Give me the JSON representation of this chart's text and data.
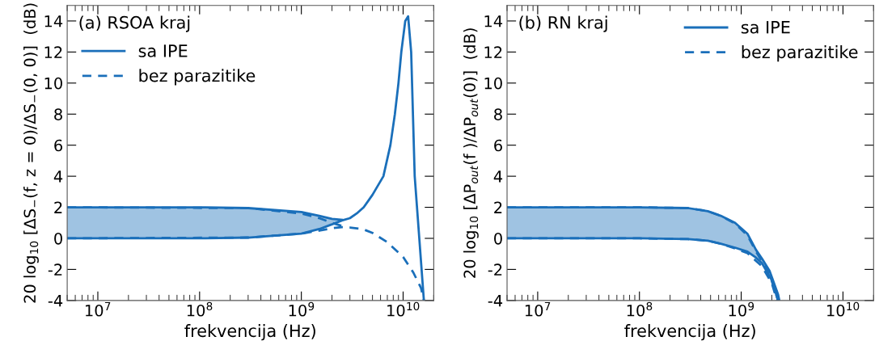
{
  "chart_data": [
    {
      "type": "line",
      "title": "(a) RSOA kraj",
      "xlabel": "frekvencija (Hz)",
      "ylabel": "20 log$_{10}$ [ΔS$_{−}$(f, z = 0)/ΔS$_{−}$(0, 0)]  (dB)",
      "log": "x",
      "xlim": [
        5000000.0,
        20000000000.0
      ],
      "ylim": [
        -4,
        15
      ],
      "xticks": [
        {
          "value": 10000000.0,
          "label": "10$^{7}$"
        },
        {
          "value": 100000000.0,
          "label": "10$^{8}$"
        },
        {
          "value": 1000000000.0,
          "label": "10$^{9}$"
        },
        {
          "value": 10000000000.0,
          "label": "10$^{10}$"
        }
      ],
      "yticks": [
        -4,
        -2,
        0,
        2,
        4,
        6,
        8,
        10,
        12,
        14
      ],
      "legend": "top left",
      "grid": false,
      "series": [
        {
          "name": "sa IPE",
          "color": "#1a6fba",
          "line_style": "solid",
          "x": [
            5000000.0,
            100000000.0,
            300000000.0,
            1000000000.0,
            1500000000.0,
            2000000000.0,
            2500000000.0
          ],
          "values": [
            2,
            2,
            1.95,
            1.7,
            1.45,
            1.25,
            1.2
          ],
          "lower": [
            0,
            0,
            0.05,
            0.3,
            0.6,
            0.9,
            1.15
          ],
          "upper": [
            2,
            2,
            1.95,
            1.7,
            1.45,
            1.25,
            1.2
          ]
        },
        {
          "color": "#1a6fba",
          "line_style": "solid",
          "x": [
            5000000.0,
            100000000.0,
            300000000.0,
            1000000000.0,
            1500000000.0,
            2000000000.0,
            2500000000.0,
            3000000000.0,
            3500000000.0,
            4100000000.0,
            5000000000.0,
            6400000000.0,
            7500000000.0,
            8300000000.0,
            9000000000.0,
            9600000000.0,
            10500000000.0,
            11200000000.0,
            12000000000.0,
            13000000000.0,
            16000000000.0
          ],
          "values": [
            0,
            0,
            0.05,
            0.3,
            0.6,
            0.9,
            1.15,
            1.3,
            1.6,
            2,
            2.8,
            4,
            6,
            8,
            10,
            12,
            14,
            14.3,
            12,
            4,
            -4
          ]
        },
        {
          "name": "bez parazitike",
          "color": "#1a6fba",
          "line_style": "dashed",
          "x": [
            5000000.0,
            300000000.0,
            1000000000.0,
            1500000000.0,
            2000000000.0,
            2500000000.0
          ],
          "values": [
            2,
            1.95,
            1.6,
            1.3,
            1.0,
            0.8
          ]
        },
        {
          "color": "#1a6fba",
          "line_style": "dashed",
          "x": [
            5000000.0,
            300000000.0,
            1000000000.0,
            1500000000.0,
            2000000000.0,
            2500000000.0,
            3000000000.0,
            4000000000.0,
            5000000000.0,
            7000000000.0,
            10000000000.0,
            12600000000.0,
            15000000000.0,
            16000000000.0
          ],
          "values": [
            0,
            0.05,
            0.3,
            0.5,
            0.65,
            0.72,
            0.7,
            0.6,
            0.35,
            -0.25,
            -1.2,
            -2.2,
            -3.2,
            -4
          ]
        }
      ]
    },
    {
      "type": "line",
      "title": "(b) RN kraj",
      "xlabel": "frekvencija (Hz)",
      "ylabel": "20 log$_{10}$ [ΔP$_{out}$(f )/ΔP$_{out}$(0)]  (dB)",
      "log": "x",
      "xlim": [
        5000000.0,
        20000000000.0
      ],
      "ylim": [
        -4,
        15
      ],
      "xticks": [
        {
          "value": 10000000.0,
          "label": "10$^{7}$"
        },
        {
          "value": 100000000.0,
          "label": "10$^{8}$"
        },
        {
          "value": 1000000000.0,
          "label": "10$^{9}$"
        },
        {
          "value": 10000000000.0,
          "label": "10$^{10}$"
        }
      ],
      "yticks": [
        -4,
        -2,
        0,
        2,
        4,
        6,
        8,
        10,
        12,
        14
      ],
      "legend": "top right",
      "grid": false,
      "series": [
        {
          "name": "sa IPE",
          "color": "#1a6fba",
          "line_style": "solid",
          "x": [
            5000000.0,
            100000000.0,
            300000000.0,
            470000000.0,
            630000000.0,
            870000000.0,
            1150000000.0,
            1400000000.0,
            1600000000.0,
            1900000000.0,
            2000000000.0,
            2300000000.0,
            2370000000.0
          ],
          "values": [
            2,
            2,
            1.95,
            1.75,
            1.45,
            1.0,
            0.3,
            -0.75,
            -1.3,
            -2.1,
            -2.5,
            -3.6,
            -4
          ],
          "lower": [
            0,
            0,
            -0.05,
            -0.15,
            -0.35,
            -0.6,
            -0.85,
            -1.25,
            -1.6,
            -2.4,
            -2.7,
            -4,
            -4
          ],
          "upper": [
            2,
            2,
            1.95,
            1.75,
            1.45,
            1.0,
            0.3,
            -0.75,
            -1.3,
            -2.1,
            -2.5,
            -3.6,
            -4
          ]
        },
        {
          "color": "#1a6fba",
          "line_style": "solid",
          "x": [
            5000000.0,
            100000000.0,
            300000000.0,
            470000000.0,
            630000000.0,
            870000000.0,
            1150000000.0,
            1400000000.0,
            1600000000.0,
            2000000000.0,
            2300000000.0
          ],
          "values": [
            0,
            0,
            -0.05,
            -0.15,
            -0.35,
            -0.6,
            -0.85,
            -1.25,
            -1.6,
            -2.7,
            -4
          ]
        },
        {
          "name": "bez parazitike",
          "color": "#1a6fba",
          "line_style": "dashed",
          "x": [
            5000000.0,
            100000000.0,
            300000000.0,
            470000000.0,
            630000000.0,
            870000000.0,
            1150000000.0,
            1400000000.0,
            1900000000.0,
            2300000000.0
          ],
          "values": [
            2,
            2,
            1.95,
            1.75,
            1.45,
            0.95,
            0.2,
            -0.85,
            -2.3,
            -4
          ]
        },
        {
          "color": "#1a6fba",
          "line_style": "dashed",
          "x": [
            5000000.0,
            100000000.0,
            300000000.0,
            470000000.0,
            630000000.0,
            870000000.0,
            1150000000.0,
            1600000000.0,
            2000000000.0,
            2250000000.0
          ],
          "values": [
            0,
            0,
            -0.05,
            -0.15,
            -0.35,
            -0.65,
            -0.95,
            -1.8,
            -2.9,
            -4
          ]
        }
      ]
    }
  ]
}
